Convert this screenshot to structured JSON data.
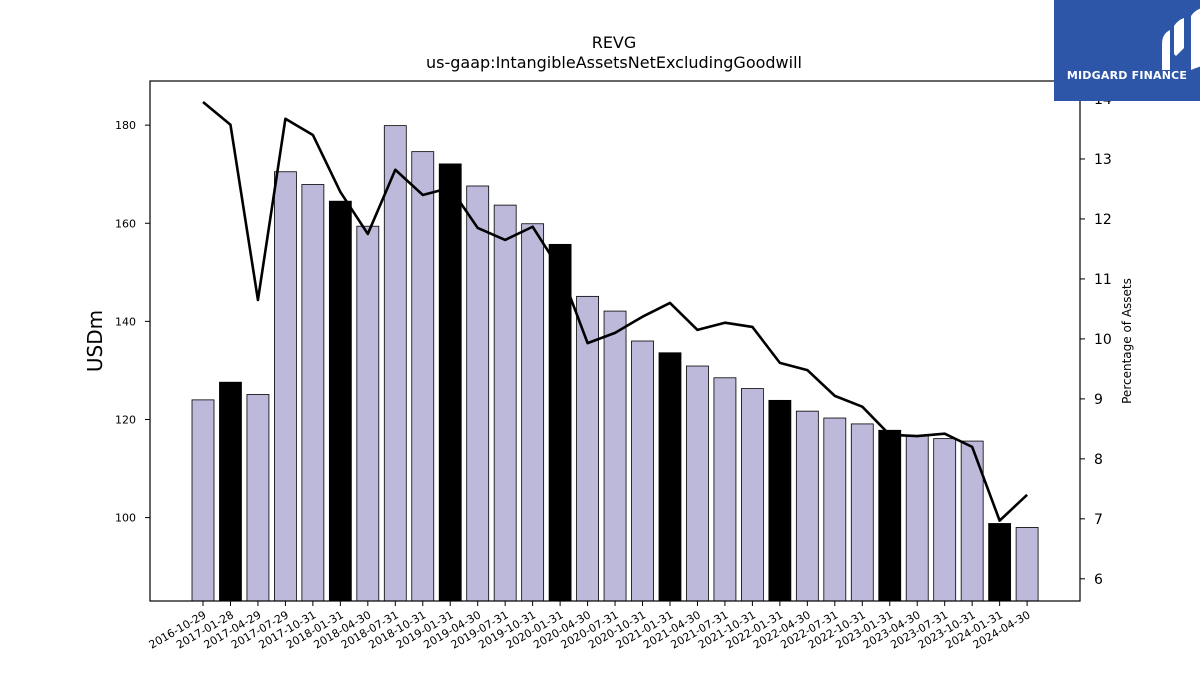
{
  "chart_data": {
    "type": "bar",
    "title": "REVG",
    "subtitle": "us-gaap:IntangibleAssetsNetExcludingGoodwill",
    "ylabel": "USDm",
    "y2label": "Percentage of Assets",
    "ylim": [
      83,
      189
    ],
    "y2lim": [
      5.63,
      14.3
    ],
    "yticks": [
      100,
      120,
      140,
      160,
      180
    ],
    "y2ticks": [
      6,
      7,
      8,
      9,
      10,
      11,
      12,
      13,
      14
    ],
    "grid": false,
    "categories": [
      "2016-10-29",
      "2017-01-28",
      "2017-04-29",
      "2017-07-29",
      "2017-10-31",
      "2018-01-31",
      "2018-04-30",
      "2018-07-31",
      "2018-10-31",
      "2019-01-31",
      "2019-04-30",
      "2019-07-31",
      "2019-10-31",
      "2020-01-31",
      "2020-04-30",
      "2020-07-31",
      "2020-10-31",
      "2021-01-31",
      "2021-04-30",
      "2021-07-31",
      "2021-10-31",
      "2022-01-31",
      "2022-04-30",
      "2022-07-31",
      "2022-10-31",
      "2023-01-31",
      "2023-04-30",
      "2023-07-31",
      "2023-10-31",
      "2024-01-31",
      "2024-04-30"
    ],
    "series": [
      {
        "kind": "bar",
        "values": [
          124.0,
          127.6,
          125.1,
          170.5,
          167.9,
          164.5,
          159.4,
          179.9,
          174.6,
          172.1,
          167.6,
          163.7,
          159.9,
          155.7,
          145.1,
          142.1,
          136.0,
          133.6,
          130.9,
          128.5,
          126.3,
          123.9,
          121.7,
          120.3,
          119.1,
          117.8,
          116.7,
          116.1,
          115.6,
          98.8,
          98.0
        ],
        "highlight": [
          false,
          true,
          false,
          false,
          false,
          true,
          false,
          false,
          false,
          true,
          false,
          false,
          false,
          true,
          false,
          false,
          false,
          true,
          false,
          false,
          false,
          true,
          false,
          false,
          false,
          true,
          false,
          false,
          false,
          true,
          false
        ],
        "color": "#bdb9da",
        "highlight_color": "#000000"
      },
      {
        "kind": "line",
        "axis": "right",
        "values": [
          13.95,
          13.57,
          10.65,
          13.67,
          13.4,
          12.45,
          11.75,
          12.82,
          12.4,
          12.52,
          11.85,
          11.65,
          11.87,
          11.15,
          9.93,
          10.1,
          10.37,
          10.6,
          10.15,
          10.27,
          10.2,
          9.6,
          9.48,
          9.05,
          8.87,
          8.4,
          8.38,
          8.42,
          8.2,
          6.97,
          7.4
        ],
        "color": "#000000"
      }
    ]
  },
  "logo": {
    "text": "MIDGARD FINANCE",
    "background": "#2e56a8"
  }
}
